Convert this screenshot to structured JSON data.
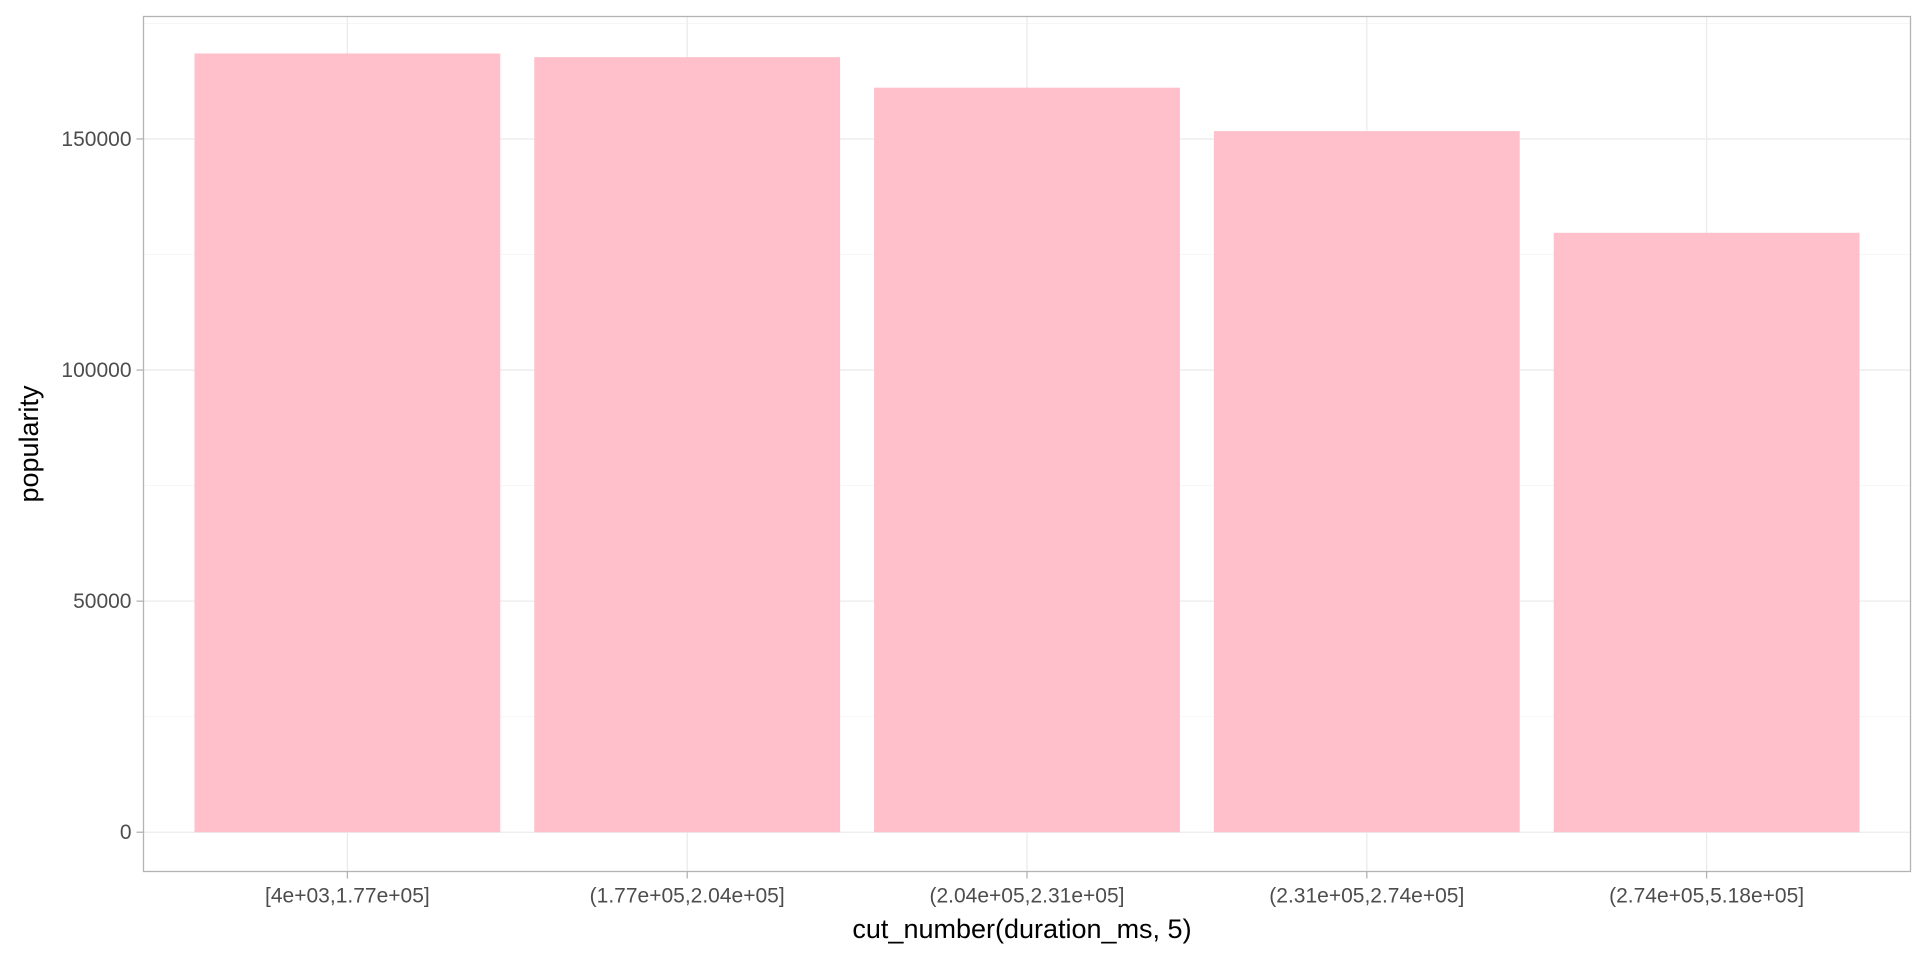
{
  "chart_data": {
    "type": "bar",
    "title": "",
    "xlabel": "cut_number(duration_ms, 5)",
    "ylabel": "popularity",
    "categories": [
      "[4e+03,1.77e+05]",
      "(1.77e+05,2.04e+05]",
      "(2.04e+05,2.31e+05]",
      "(2.31e+05,2.74e+05]",
      "(2.74e+05,5.18e+05]"
    ],
    "values": [
      168500,
      167700,
      161100,
      151700,
      129700
    ],
    "ylim": [
      -8500,
      176500
    ],
    "yticks": [
      0,
      50000,
      100000,
      150000
    ],
    "ytick_labels": [
      "0",
      "50000",
      "100000",
      "150000"
    ],
    "grid": true,
    "legend": "none",
    "colors": {
      "bar": "#FFC0CB",
      "panel_border": "#b3b3b3",
      "grid_major": "#ebebeb",
      "grid_minor": "#f5f5f5",
      "tick": "#b3b3b3"
    }
  }
}
